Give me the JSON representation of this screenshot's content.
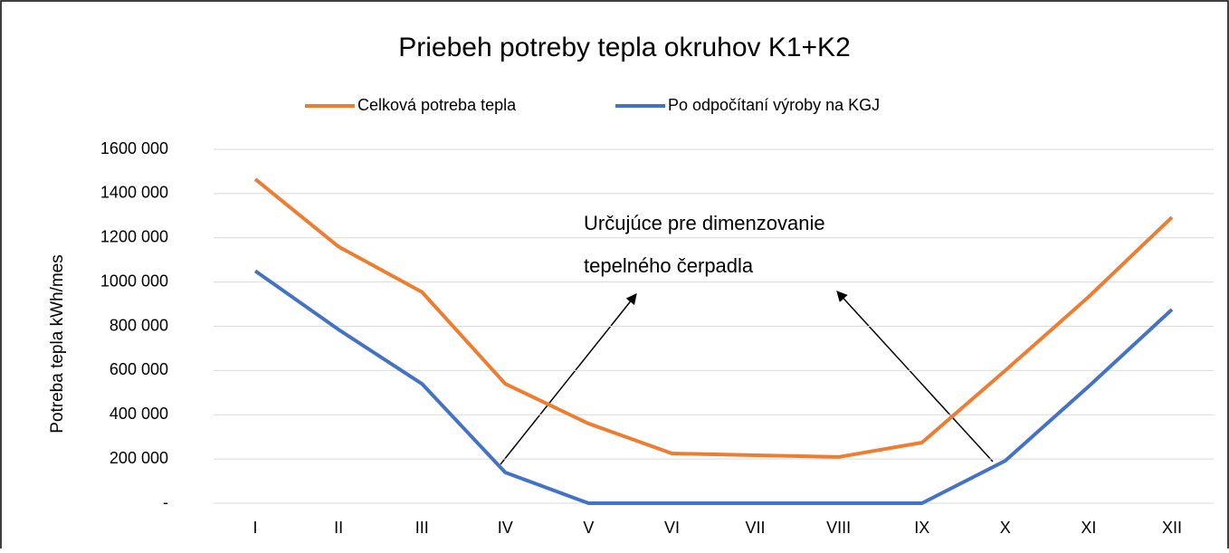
{
  "chart_data": {
    "type": "line",
    "title": "Priebeh potreby tepla okruhov K1+K2",
    "ylabel": "Potreba tepla kWh/mes",
    "categories": [
      "I",
      "II",
      "III",
      "IV",
      "V",
      "VI",
      "VII",
      "VIII",
      "IX",
      "X",
      "XI",
      "XII"
    ],
    "series": [
      {
        "name": "Celková potreba tepla",
        "color": "#ed7d31",
        "values": [
          1465000,
          1160000,
          955000,
          540000,
          360000,
          225000,
          217000,
          209000,
          274000,
          600000,
          933000,
          1293000
        ]
      },
      {
        "name": "Po odpočítaní výroby na KGJ",
        "color": "#4472c4",
        "values": [
          1050000,
          785000,
          540000,
          139000,
          0,
          0,
          0,
          0,
          0,
          192000,
          528000,
          876000
        ]
      }
    ],
    "ylim": [
      0,
      1600000
    ],
    "yticks": [
      {
        "value": 0,
        "label": "-"
      },
      {
        "value": 200000,
        "label": "200 000"
      },
      {
        "value": 400000,
        "label": "400 000"
      },
      {
        "value": 600000,
        "label": "600 000"
      },
      {
        "value": 800000,
        "label": "800 000"
      },
      {
        "value": 1000000,
        "label": "1000 000"
      },
      {
        "value": 1200000,
        "label": "1200 000"
      },
      {
        "value": 1400000,
        "label": "1400 000"
      },
      {
        "value": 1600000,
        "label": "1600 000"
      }
    ],
    "grid": true,
    "legend": "top",
    "annotation": [
      "Určujúce pre dimenzovanie",
      "tepelného čerpadla"
    ]
  }
}
